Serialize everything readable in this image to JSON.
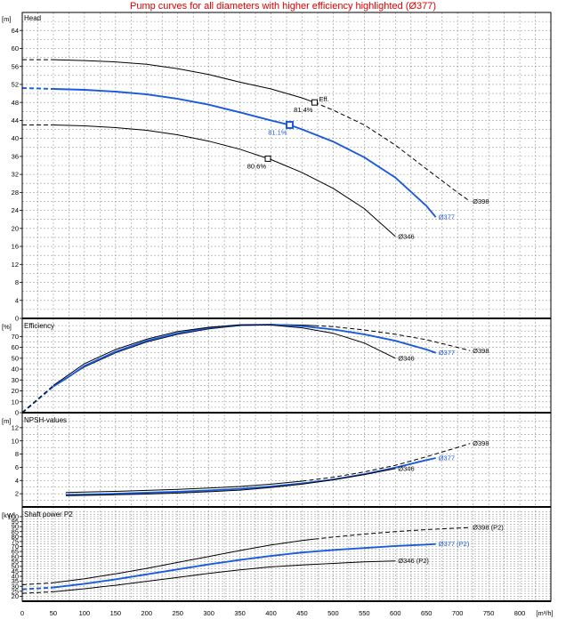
{
  "page_title": "Pump curves for all diameters with higher efficiency highlighted (Ø377)",
  "colors": {
    "highlight": "#1a5bdb",
    "curve": "#000000",
    "title": "#e00000",
    "grid": "#9a9a9a"
  },
  "chart_data": {
    "type": "line",
    "x_axis": {
      "unit": "[m³/h]",
      "range": [
        0,
        850
      ],
      "ticks": [
        0,
        50,
        100,
        150,
        200,
        250,
        300,
        350,
        400,
        450,
        500,
        550,
        600,
        650,
        700,
        750,
        800
      ]
    },
    "panels": [
      {
        "id": "head",
        "title": "Head",
        "unit": "[m]",
        "ylim": [
          0,
          68
        ],
        "ticks": [
          0,
          4,
          8,
          12,
          16,
          20,
          24,
          28,
          32,
          36,
          40,
          44,
          48,
          52,
          56,
          60,
          64
        ],
        "series": [
          {
            "name": "Ø398",
            "color": "#000000",
            "highlight": false,
            "dashed_before": 80,
            "dashed_after": 470,
            "points": [
              [
                0,
                57.5
              ],
              [
                50,
                57.5
              ],
              [
                100,
                57.3
              ],
              [
                150,
                57.0
              ],
              [
                200,
                56.5
              ],
              [
                250,
                55.5
              ],
              [
                300,
                54.2
              ],
              [
                350,
                52.5
              ],
              [
                400,
                51.0
              ],
              [
                450,
                49.0
              ],
              [
                470,
                48.0
              ],
              [
                500,
                46.3
              ],
              [
                550,
                43.0
              ],
              [
                600,
                38.5
              ],
              [
                650,
                33.2
              ],
              [
                700,
                28.0
              ],
              [
                720,
                26.0
              ]
            ]
          },
          {
            "name": "Ø377",
            "color": "#1a5bdb",
            "highlight": true,
            "dashed_before": 75,
            "dashed_after": null,
            "points": [
              [
                0,
                51.2
              ],
              [
                50,
                51.0
              ],
              [
                100,
                50.8
              ],
              [
                150,
                50.4
              ],
              [
                200,
                49.8
              ],
              [
                250,
                48.8
              ],
              [
                300,
                47.5
              ],
              [
                350,
                45.8
              ],
              [
                400,
                44.0
              ],
              [
                430,
                43.0
              ],
              [
                450,
                42.0
              ],
              [
                500,
                39.3
              ],
              [
                550,
                35.8
              ],
              [
                600,
                31.3
              ],
              [
                650,
                25.0
              ],
              [
                665,
                22.5
              ]
            ]
          },
          {
            "name": "Ø346",
            "color": "#000000",
            "highlight": false,
            "dashed_before": 70,
            "dashed_after": null,
            "points": [
              [
                0,
                43.0
              ],
              [
                50,
                43.0
              ],
              [
                100,
                42.8
              ],
              [
                150,
                42.4
              ],
              [
                200,
                41.8
              ],
              [
                250,
                40.8
              ],
              [
                300,
                39.4
              ],
              [
                350,
                37.6
              ],
              [
                400,
                35.3
              ],
              [
                450,
                32.4
              ],
              [
                500,
                28.9
              ],
              [
                550,
                24.4
              ],
              [
                600,
                18.2
              ]
            ]
          }
        ],
        "markers": [
          {
            "series": "Ø398",
            "x": 470,
            "y": 48.0,
            "label": "81.4%",
            "extra_label": "Eff."
          },
          {
            "series": "Ø377",
            "x": 430,
            "y": 43.0,
            "label": "81.1%",
            "extra_label": ""
          },
          {
            "series": "Ø346",
            "x": 395,
            "y": 35.5,
            "label": "80.6%",
            "extra_label": ""
          }
        ]
      },
      {
        "id": "efficiency",
        "title": "Efficiency",
        "unit": "[%]",
        "ylim": [
          0,
          85
        ],
        "ticks": [
          0,
          10,
          20,
          30,
          40,
          50,
          60,
          70
        ],
        "series": [
          {
            "name": "Ø398",
            "color": "#000000",
            "highlight": false,
            "dashed_before": 70,
            "dashed_after": 470,
            "points": [
              [
                0,
                0
              ],
              [
                25,
                12
              ],
              [
                50,
                24
              ],
              [
                75,
                33
              ],
              [
                100,
                42
              ],
              [
                150,
                55
              ],
              [
                200,
                65
              ],
              [
                250,
                72
              ],
              [
                300,
                77
              ],
              [
                350,
                80
              ],
              [
                400,
                81
              ],
              [
                450,
                80.5
              ],
              [
                470,
                80
              ],
              [
                500,
                79
              ],
              [
                550,
                76
              ],
              [
                600,
                72
              ],
              [
                650,
                67
              ],
              [
                700,
                60
              ],
              [
                720,
                57
              ]
            ]
          },
          {
            "name": "Ø377",
            "color": "#1a5bdb",
            "highlight": true,
            "dashed_before": 70,
            "dashed_after": null,
            "points": [
              [
                0,
                0
              ],
              [
                25,
                12
              ],
              [
                50,
                24
              ],
              [
                75,
                33
              ],
              [
                100,
                43
              ],
              [
                150,
                56
              ],
              [
                200,
                66
              ],
              [
                250,
                73
              ],
              [
                300,
                78
              ],
              [
                350,
                80.5
              ],
              [
                400,
                81
              ],
              [
                450,
                79.5
              ],
              [
                500,
                76.5
              ],
              [
                550,
                72
              ],
              [
                600,
                66
              ],
              [
                650,
                58
              ],
              [
                665,
                55
              ]
            ]
          },
          {
            "name": "Ø346",
            "color": "#000000",
            "highlight": false,
            "dashed_before": 70,
            "dashed_after": null,
            "points": [
              [
                0,
                0
              ],
              [
                25,
                12.5
              ],
              [
                50,
                25
              ],
              [
                75,
                35
              ],
              [
                100,
                45
              ],
              [
                150,
                58
              ],
              [
                200,
                67.5
              ],
              [
                250,
                74.5
              ],
              [
                300,
                78.5
              ],
              [
                350,
                80.5
              ],
              [
                400,
                80.5
              ],
              [
                450,
                78
              ],
              [
                500,
                73
              ],
              [
                550,
                64
              ],
              [
                600,
                50
              ]
            ]
          }
        ]
      },
      {
        "id": "npsh",
        "title": "NPSH-values",
        "unit": "[m]",
        "ylim": [
          0,
          14
        ],
        "ticks": [
          2,
          4,
          6,
          8,
          10,
          12
        ],
        "series": [
          {
            "name": "Ø398",
            "color": "#000000",
            "highlight": false,
            "dashed_before": null,
            "dashed_after": 470,
            "points": [
              [
                70,
                2.2
              ],
              [
                100,
                2.25
              ],
              [
                150,
                2.35
              ],
              [
                200,
                2.5
              ],
              [
                250,
                2.65
              ],
              [
                300,
                2.85
              ],
              [
                350,
                3.1
              ],
              [
                400,
                3.45
              ],
              [
                450,
                3.9
              ],
              [
                500,
                4.5
              ],
              [
                550,
                5.3
              ],
              [
                600,
                6.3
              ],
              [
                650,
                7.6
              ],
              [
                700,
                9.0
              ],
              [
                720,
                9.6
              ]
            ]
          },
          {
            "name": "Ø377",
            "color": "#1a5bdb",
            "highlight": true,
            "dashed_before": null,
            "dashed_after": null,
            "points": [
              [
                70,
                1.85
              ],
              [
                100,
                1.9
              ],
              [
                150,
                2.0
              ],
              [
                200,
                2.15
              ],
              [
                250,
                2.3
              ],
              [
                300,
                2.5
              ],
              [
                350,
                2.75
              ],
              [
                400,
                3.1
              ],
              [
                450,
                3.55
              ],
              [
                500,
                4.15
              ],
              [
                550,
                4.95
              ],
              [
                600,
                5.95
              ],
              [
                650,
                7.1
              ],
              [
                665,
                7.4
              ]
            ]
          },
          {
            "name": "Ø346",
            "color": "#000000",
            "highlight": false,
            "dashed_before": null,
            "dashed_after": null,
            "points": [
              [
                70,
                1.7
              ],
              [
                100,
                1.75
              ],
              [
                150,
                1.85
              ],
              [
                200,
                1.95
              ],
              [
                250,
                2.1
              ],
              [
                300,
                2.3
              ],
              [
                350,
                2.55
              ],
              [
                400,
                2.95
              ],
              [
                450,
                3.45
              ],
              [
                500,
                4.1
              ],
              [
                550,
                4.9
              ],
              [
                600,
                5.8
              ]
            ]
          }
        ]
      },
      {
        "id": "power",
        "title": "Shaft power P2",
        "unit": "[kW]",
        "ylim": [
          15,
          108
        ],
        "ticks": [
          20,
          25,
          30,
          35,
          40,
          45,
          50,
          55,
          60,
          65,
          70,
          75,
          80,
          85,
          90,
          95,
          100
        ],
        "series": [
          {
            "name": "Ø398 (P2)",
            "color": "#000000",
            "highlight": false,
            "dashed_before": 75,
            "dashed_after": 470,
            "points": [
              [
                0,
                31.5
              ],
              [
                50,
                33.5
              ],
              [
                100,
                37.5
              ],
              [
                150,
                42.5
              ],
              [
                200,
                48
              ],
              [
                250,
                54
              ],
              [
                300,
                60
              ],
              [
                350,
                66
              ],
              [
                400,
                71.5
              ],
              [
                450,
                76
              ],
              [
                470,
                77.5
              ],
              [
                500,
                79.5
              ],
              [
                550,
                82.5
              ],
              [
                600,
                85
              ],
              [
                650,
                87
              ],
              [
                700,
                88.5
              ],
              [
                720,
                89
              ]
            ]
          },
          {
            "name": "Ø377 (P2)",
            "color": "#1a5bdb",
            "highlight": true,
            "dashed_before": 75,
            "dashed_after": null,
            "points": [
              [
                0,
                27
              ],
              [
                50,
                28.8
              ],
              [
                100,
                32.5
              ],
              [
                150,
                37
              ],
              [
                200,
                42
              ],
              [
                250,
                47
              ],
              [
                300,
                52
              ],
              [
                350,
                56.5
              ],
              [
                400,
                60.5
              ],
              [
                450,
                64
              ],
              [
                500,
                66.5
              ],
              [
                550,
                68.5
              ],
              [
                600,
                70.5
              ],
              [
                650,
                72
              ],
              [
                665,
                72.5
              ]
            ]
          },
          {
            "name": "Ø346 (P2)",
            "color": "#000000",
            "highlight": false,
            "dashed_before": 70,
            "dashed_after": null,
            "points": [
              [
                0,
                23
              ],
              [
                50,
                24.5
              ],
              [
                100,
                27.5
              ],
              [
                150,
                31
              ],
              [
                200,
                35
              ],
              [
                250,
                39
              ],
              [
                300,
                43
              ],
              [
                350,
                46.5
              ],
              [
                400,
                49.5
              ],
              [
                450,
                51.5
              ],
              [
                500,
                53
              ],
              [
                550,
                54.5
              ],
              [
                600,
                55.5
              ]
            ]
          }
        ]
      }
    ]
  }
}
